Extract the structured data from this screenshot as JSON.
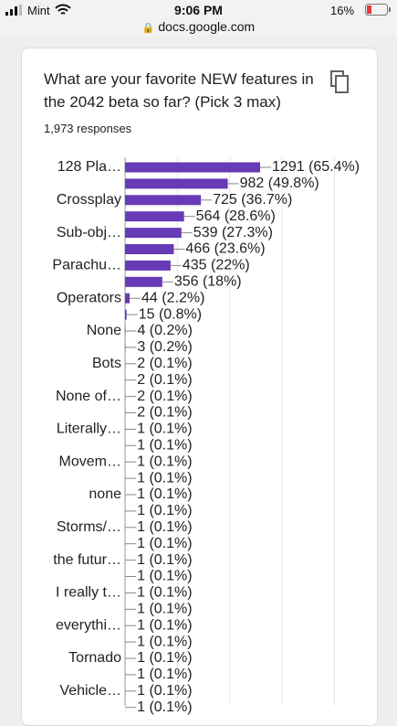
{
  "status_bar": {
    "carrier": "Mint",
    "time": "9:06 PM",
    "url": "docs.google.com",
    "battery": "16%"
  },
  "card": {
    "title": "What are your favorite NEW features in the 2042 beta so far? (Pick 3 max)",
    "responses": "1,973 responses"
  },
  "chart_data": {
    "type": "barh",
    "categories": [
      "128 Pla…",
      null,
      "Crossplay",
      null,
      "Sub-obj…",
      null,
      "Parachu…",
      null,
      "Operators",
      null,
      "None",
      null,
      "Bots",
      null,
      "None of…",
      null,
      "Literally…",
      null,
      "Movem…",
      null,
      "none",
      null,
      "Storms/…",
      null,
      "the futur…",
      null,
      "I really t…",
      null,
      "everythi…",
      null,
      "Tornado",
      null,
      "Vehicle…",
      null
    ],
    "values": [
      1291,
      982,
      725,
      564,
      539,
      466,
      435,
      356,
      44,
      15,
      4,
      3,
      2,
      2,
      2,
      2,
      1,
      1,
      1,
      1,
      1,
      1,
      1,
      1,
      1,
      1,
      1,
      1,
      1,
      1,
      1,
      1,
      1,
      1
    ],
    "value_labels": [
      "1291 (65.4%)",
      "982 (49.8%)",
      "725 (36.7%)",
      "564 (28.6%)",
      "539 (27.3%)",
      "466 (23.6%)",
      "435 (22%)",
      "356 (18%)",
      "44 (2.2%)",
      "15 (0.8%)",
      "4 (0.2%)",
      "3 (0.2%)",
      "2 (0.1%)",
      "2 (0.1%)",
      "2 (0.1%)",
      "2 (0.1%)",
      "1 (0.1%)",
      "1 (0.1%)",
      "1 (0.1%)",
      "1 (0.1%)",
      "1 (0.1%)",
      "1 (0.1%)",
      "1 (0.1%)",
      "1 (0.1%)",
      "1 (0.1%)",
      "1 (0.1%)",
      "1 (0.1%)",
      "1 (0.1%)",
      "1 (0.1%)",
      "1 (0.1%)",
      "1 (0.1%)",
      "1 (0.1%)",
      "1 (0.1%)",
      "1 (0.1%)"
    ],
    "color": "#673ab7",
    "xlim": [
      0,
      2250
    ],
    "xticks": [
      0,
      500,
      1000,
      1500,
      2000
    ],
    "grid": true
  }
}
